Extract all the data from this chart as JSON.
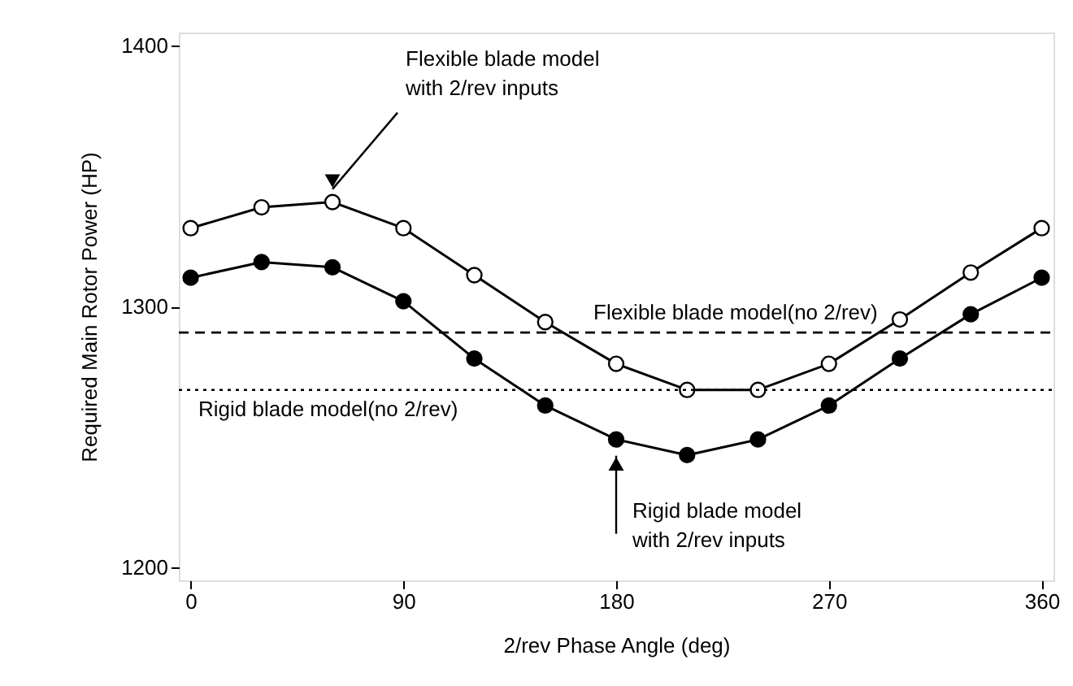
{
  "chart_data": {
    "type": "line",
    "xlabel": "2/rev Phase Angle (deg)",
    "ylabel": "Required Main Rotor Power (HP)",
    "x": [
      0,
      30,
      60,
      90,
      120,
      150,
      180,
      210,
      240,
      270,
      300,
      330,
      360
    ],
    "series": [
      {
        "color": "#000000",
        "values": [
          1330,
          1338,
          1340,
          1330,
          1312,
          1294,
          1278,
          1268,
          1268,
          1278,
          1295,
          1313,
          1330
        ]
      },
      {
        "color": "#000000",
        "values": [
          1311,
          1317,
          1315,
          1302,
          1280,
          1262,
          1249,
          1243,
          1249,
          1262,
          1280,
          1297,
          1311
        ]
      }
    ],
    "xlim": [
      -5,
      365
    ],
    "ylim": [
      1195,
      1405
    ],
    "xticks": [
      0,
      90,
      180,
      270,
      360
    ],
    "yticks": [
      1200,
      1300,
      1400
    ],
    "ref_lines": [
      {
        "axis": "y",
        "value": 1290,
        "label": "Flexible blade model(no 2/rev)",
        "line_style": "dashed",
        "color": "#000000"
      },
      {
        "axis": "y",
        "value": 1268,
        "label": "Rigid blade model(no 2/rev)",
        "line_style": "dotted",
        "color": "#000000"
      }
    ],
    "annotations": [
      {
        "text": "Flexible blade model\nwith 2/rev inputs",
        "x": 60,
        "y": 1340
      },
      {
        "text": "Rigid blade model\nwith 2/rev inputs",
        "x": 180,
        "y": 1249
      }
    ],
    "marker": "circle",
    "line_style": "solid",
    "grid": false
  }
}
